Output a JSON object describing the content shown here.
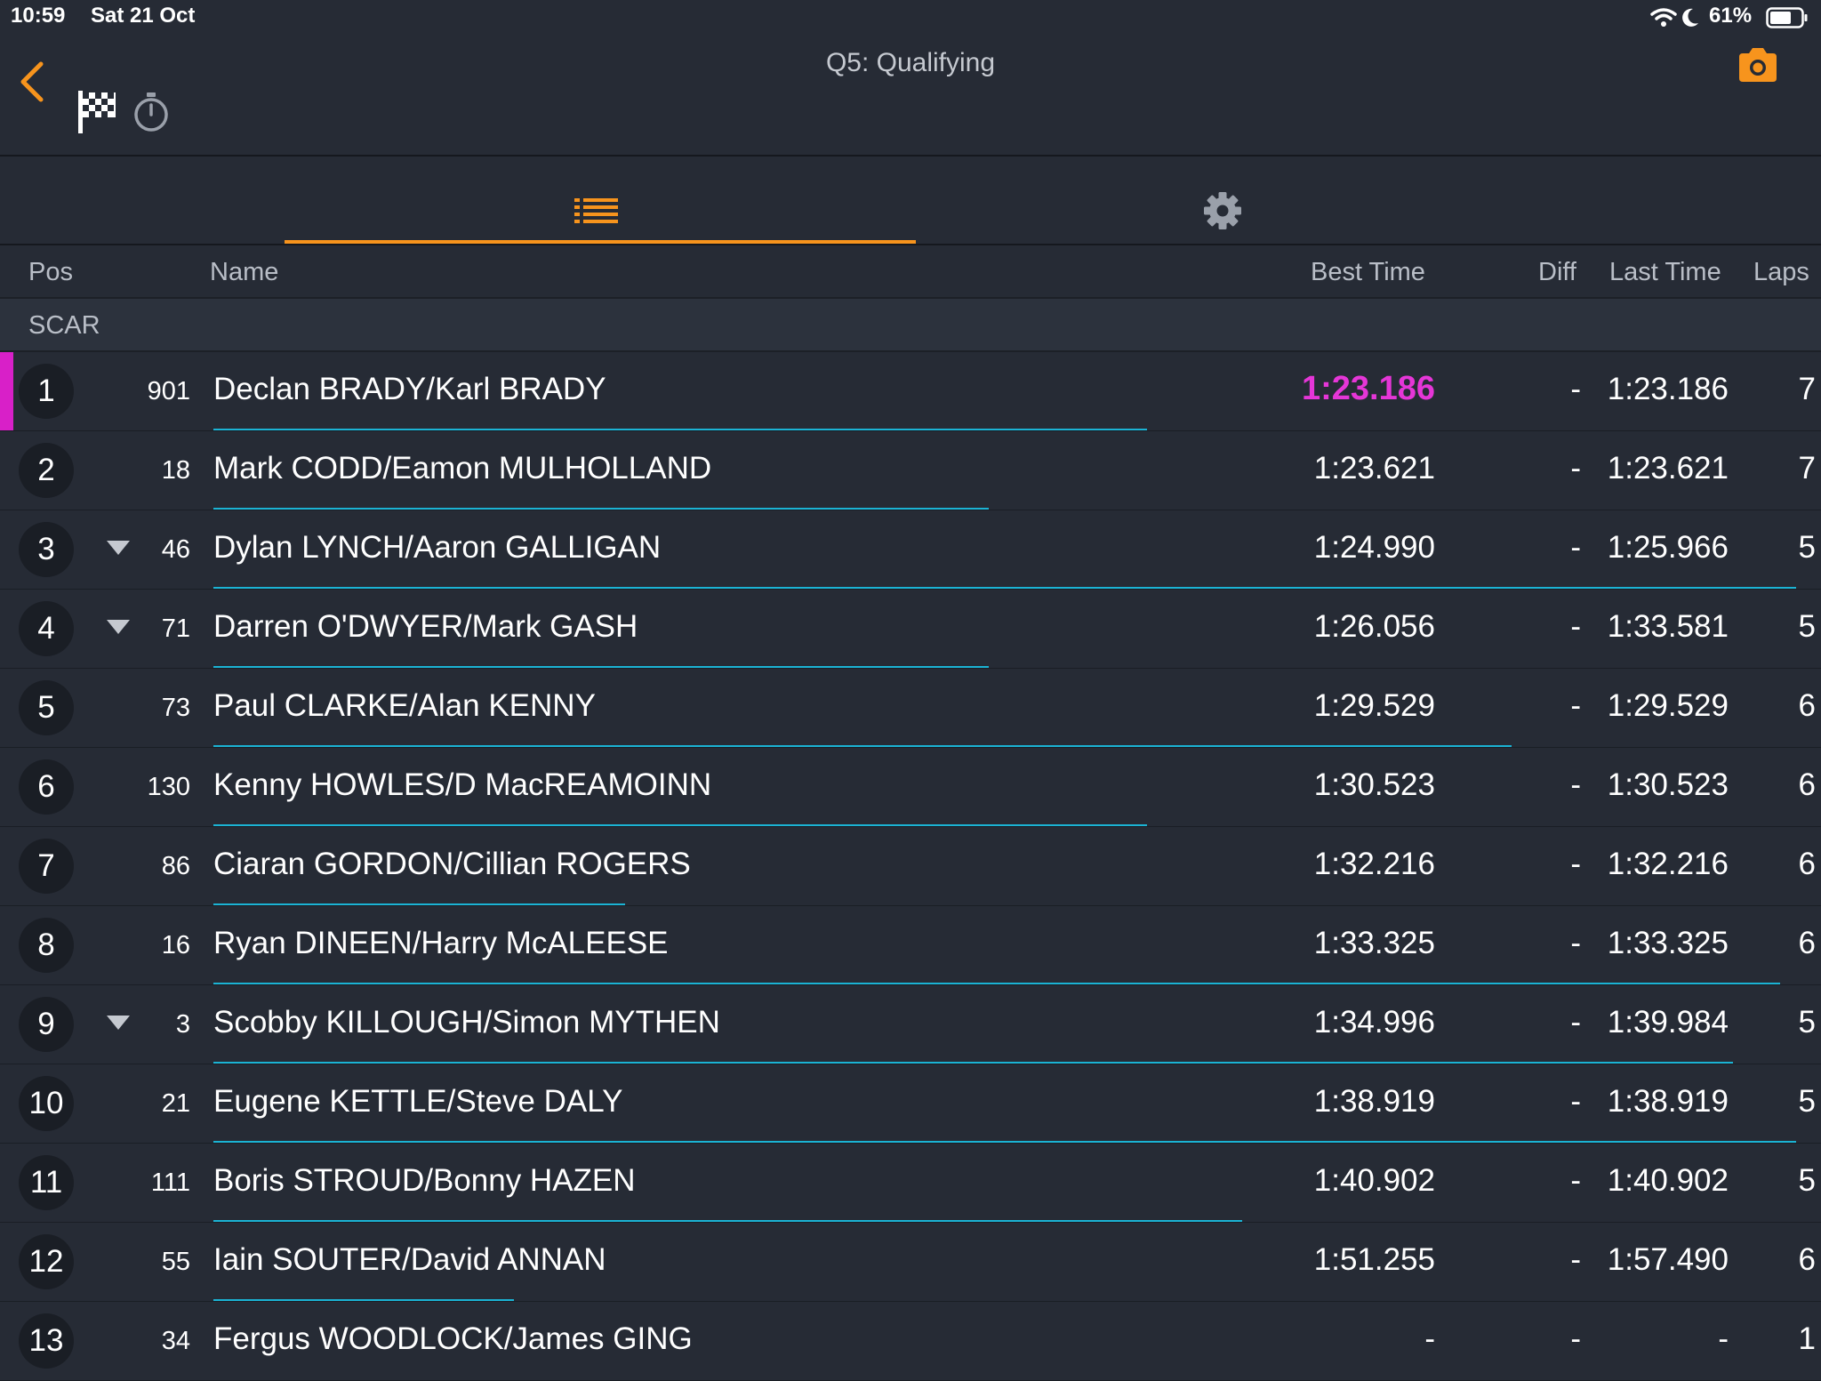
{
  "status_bar": {
    "time": "10:59",
    "date": "Sat 21 Oct",
    "battery": "61%"
  },
  "header": {
    "title": "Q5: Qualifying"
  },
  "columns": {
    "pos": "Pos",
    "name": "Name",
    "best": "Best Time",
    "diff": "Diff",
    "last": "Last Time",
    "laps": "Laps"
  },
  "group": "SCAR",
  "colors": {
    "accent": "#f7941d",
    "fastest": "#e536d7",
    "bar": "#1bb3d4"
  },
  "rows": [
    {
      "pos": "1",
      "num": "901",
      "name": "Declan BRADY/Karl BRADY",
      "best": "1:23.186",
      "diff": "-",
      "last": "1:23.186",
      "laps": "7",
      "progress": 0.59,
      "fastest": true,
      "arrow": false
    },
    {
      "pos": "2",
      "num": "18",
      "name": "Mark CODD/Eamon MULHOLLAND",
      "best": "1:23.621",
      "diff": "-",
      "last": "1:23.621",
      "laps": "7",
      "progress": 0.49,
      "fastest": false,
      "arrow": false
    },
    {
      "pos": "3",
      "num": "46",
      "name": "Dylan LYNCH/Aaron GALLIGAN",
      "best": "1:24.990",
      "diff": "-",
      "last": "1:25.966",
      "laps": "5",
      "progress": 1.0,
      "fastest": false,
      "arrow": true
    },
    {
      "pos": "4",
      "num": "71",
      "name": "Darren O'DWYER/Mark GASH",
      "best": "1:26.056",
      "diff": "-",
      "last": "1:33.581",
      "laps": "5",
      "progress": 0.49,
      "fastest": false,
      "arrow": true
    },
    {
      "pos": "5",
      "num": "73",
      "name": "Paul CLARKE/Alan KENNY",
      "best": "1:29.529",
      "diff": "-",
      "last": "1:29.529",
      "laps": "6",
      "progress": 0.82,
      "fastest": false,
      "arrow": false
    },
    {
      "pos": "6",
      "num": "130",
      "name": "Kenny HOWLES/D MacREAMOINN",
      "best": "1:30.523",
      "diff": "-",
      "last": "1:30.523",
      "laps": "6",
      "progress": 0.59,
      "fastest": false,
      "arrow": false
    },
    {
      "pos": "7",
      "num": "86",
      "name": "Ciaran GORDON/Cillian ROGERS",
      "best": "1:32.216",
      "diff": "-",
      "last": "1:32.216",
      "laps": "6",
      "progress": 0.26,
      "fastest": false,
      "arrow": false
    },
    {
      "pos": "8",
      "num": "16",
      "name": "Ryan DINEEN/Harry McALEESE",
      "best": "1:33.325",
      "diff": "-",
      "last": "1:33.325",
      "laps": "6",
      "progress": 0.99,
      "fastest": false,
      "arrow": false
    },
    {
      "pos": "9",
      "num": "3",
      "name": "Scobby KILLOUGH/Simon MYTHEN",
      "best": "1:34.996",
      "diff": "-",
      "last": "1:39.984",
      "laps": "5",
      "progress": 0.96,
      "fastest": false,
      "arrow": true
    },
    {
      "pos": "10",
      "num": "21",
      "name": "Eugene KETTLE/Steve DALY",
      "best": "1:38.919",
      "diff": "-",
      "last": "1:38.919",
      "laps": "5",
      "progress": 1.0,
      "fastest": false,
      "arrow": false
    },
    {
      "pos": "11",
      "num": "111",
      "name": "Boris STROUD/Bonny HAZEN",
      "best": "1:40.902",
      "diff": "-",
      "last": "1:40.902",
      "laps": "5",
      "progress": 0.65,
      "fastest": false,
      "arrow": false
    },
    {
      "pos": "12",
      "num": "55",
      "name": "Iain SOUTER/David ANNAN",
      "best": "1:51.255",
      "diff": "-",
      "last": "1:57.490",
      "laps": "6",
      "progress": 0.19,
      "fastest": false,
      "arrow": false
    },
    {
      "pos": "13",
      "num": "34",
      "name": "Fergus WOODLOCK/James GING",
      "best": "-",
      "diff": "-",
      "last": "-",
      "laps": "1",
      "progress": 0,
      "fastest": false,
      "arrow": false
    }
  ]
}
